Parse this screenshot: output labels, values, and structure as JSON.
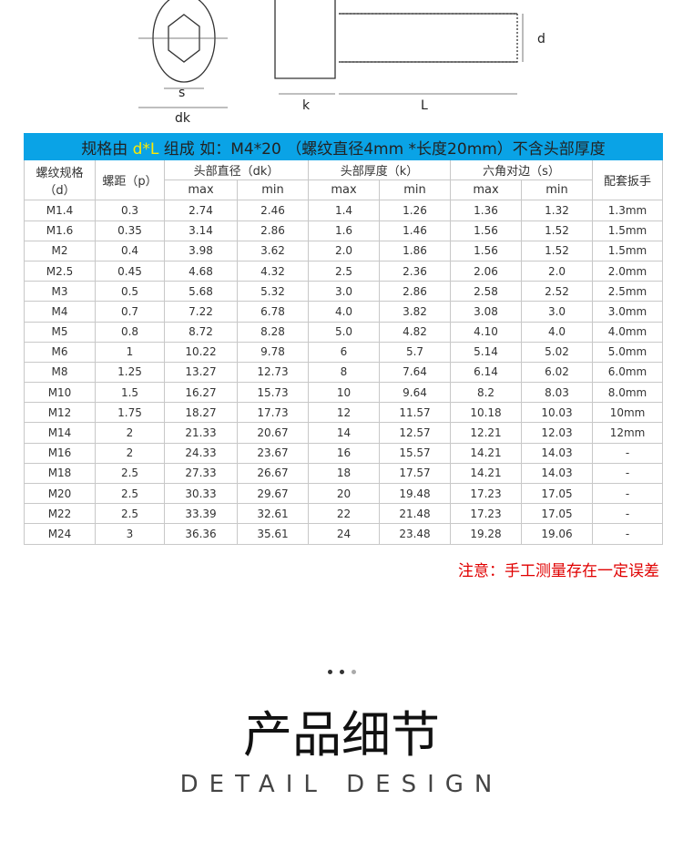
{
  "drawing": {
    "labels": {
      "s": "s",
      "dk": "dk",
      "k": "k",
      "L": "L",
      "d": "d"
    }
  },
  "banner": {
    "prefix": "规格由 ",
    "highlight": "d*L",
    "suffix": " 组成   如：M4*20   （螺纹直径4mm *长度20mm）不含头部厚度",
    "highlight_color": "#ffea00",
    "bg_color": "#0aa3e6"
  },
  "headers": {
    "d": "螺纹规格（d）",
    "p": "螺距（p）",
    "dk": "头部直径（dk）",
    "k": "头部厚度（k）",
    "s": "六角对边（s）",
    "wrench": "配套扳手",
    "max": "max",
    "min": "min"
  },
  "rows": [
    [
      "M1.4",
      "0.3",
      "2.74",
      "2.46",
      "1.4",
      "1.26",
      "1.36",
      "1.32",
      "1.3mm"
    ],
    [
      "M1.6",
      "0.35",
      "3.14",
      "2.86",
      "1.6",
      "1.46",
      "1.56",
      "1.52",
      "1.5mm"
    ],
    [
      "M2",
      "0.4",
      "3.98",
      "3.62",
      "2.0",
      "1.86",
      "1.56",
      "1.52",
      "1.5mm"
    ],
    [
      "M2.5",
      "0.45",
      "4.68",
      "4.32",
      "2.5",
      "2.36",
      "2.06",
      "2.0",
      "2.0mm"
    ],
    [
      "M3",
      "0.5",
      "5.68",
      "5.32",
      "3.0",
      "2.86",
      "2.58",
      "2.52",
      "2.5mm"
    ],
    [
      "M4",
      "0.7",
      "7.22",
      "6.78",
      "4.0",
      "3.82",
      "3.08",
      "3.0",
      "3.0mm"
    ],
    [
      "M5",
      "0.8",
      "8.72",
      "8.28",
      "5.0",
      "4.82",
      "4.10",
      "4.0",
      "4.0mm"
    ],
    [
      "M6",
      "1",
      "10.22",
      "9.78",
      "6",
      "5.7",
      "5.14",
      "5.02",
      "5.0mm"
    ],
    [
      "M8",
      "1.25",
      "13.27",
      "12.73",
      "8",
      "7.64",
      "6.14",
      "6.02",
      "6.0mm"
    ],
    [
      "M10",
      "1.5",
      "16.27",
      "15.73",
      "10",
      "9.64",
      "8.2",
      "8.03",
      "8.0mm"
    ],
    [
      "M12",
      "1.75",
      "18.27",
      "17.73",
      "12",
      "11.57",
      "10.18",
      "10.03",
      "10mm"
    ],
    [
      "M14",
      "2",
      "21.33",
      "20.67",
      "14",
      "12.57",
      "12.21",
      "12.03",
      "12mm"
    ],
    [
      "M16",
      "2",
      "24.33",
      "23.67",
      "16",
      "15.57",
      "14.21",
      "14.03",
      "-"
    ],
    [
      "M18",
      "2.5",
      "27.33",
      "26.67",
      "18",
      "17.57",
      "14.21",
      "14.03",
      "-"
    ],
    [
      "M20",
      "2.5",
      "30.33",
      "29.67",
      "20",
      "19.48",
      "17.23",
      "17.05",
      "-"
    ],
    [
      "M22",
      "2.5",
      "33.39",
      "32.61",
      "22",
      "21.48",
      "17.23",
      "17.05",
      "-"
    ],
    [
      "M24",
      "3",
      "36.36",
      "35.61",
      "24",
      "23.48",
      "19.28",
      "19.06",
      "-"
    ]
  ],
  "note": "注意：手工测量存在一定误差",
  "section": {
    "title": "产品细节",
    "subtitle": "DETAIL DESIGN"
  }
}
